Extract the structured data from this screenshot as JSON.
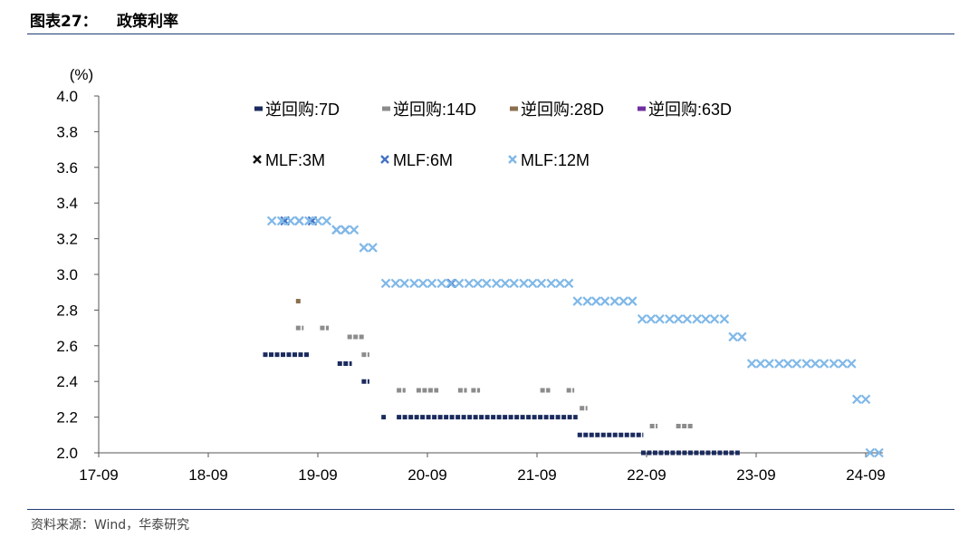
{
  "header": {
    "label": "图表27：",
    "title": "政策利率"
  },
  "source": "资料来源：Wind，华泰研究",
  "chart_data": {
    "type": "scatter",
    "ylabel": "(%)",
    "ylim": [
      2.0,
      4.0
    ],
    "yticks": [
      "4.0",
      "3.8",
      "3.6",
      "3.4",
      "3.2",
      "3.0",
      "2.8",
      "2.6",
      "2.4",
      "2.2",
      "2.0"
    ],
    "xticks": [
      "17-09",
      "18-09",
      "19-09",
      "20-09",
      "21-09",
      "22-09",
      "23-09",
      "24-09"
    ],
    "grid": false,
    "legend_position": "top",
    "series": [
      {
        "name": "逆回购:7D",
        "color": "#1b2b5e",
        "marker": "dash",
        "segments": [
          {
            "x": [
              2018.5,
              2018.93
            ],
            "y": 2.55
          },
          {
            "x": [
              2019.18,
              2019.31
            ],
            "y": 2.5
          },
          {
            "x": [
              2019.4,
              2019.47
            ],
            "y": 2.4
          },
          {
            "x": [
              2019.58,
              2019.62
            ],
            "y": 2.2
          },
          {
            "x": [
              2019.72,
              2021.37
            ],
            "y": 2.2
          },
          {
            "x": [
              2021.37,
              2021.97
            ],
            "y": 2.1
          },
          {
            "x": [
              2021.95,
              2022.85
            ],
            "y": 2.0
          }
        ]
      },
      {
        "name": "逆回购:14D",
        "color": "#8c8c8c",
        "marker": "dash",
        "segments": [
          {
            "x": [
              2018.8,
              2018.87
            ],
            "y": 2.7
          },
          {
            "x": [
              2019.02,
              2019.1
            ],
            "y": 2.7
          },
          {
            "x": [
              2019.27,
              2019.43
            ],
            "y": 2.65
          },
          {
            "x": [
              2019.4,
              2019.47
            ],
            "y": 2.55
          },
          {
            "x": [
              2019.72,
              2019.8
            ],
            "y": 2.35
          },
          {
            "x": [
              2019.9,
              2020.1
            ],
            "y": 2.35
          },
          {
            "x": [
              2020.28,
              2020.36
            ],
            "y": 2.35
          },
          {
            "x": [
              2020.4,
              2020.48
            ],
            "y": 2.35
          },
          {
            "x": [
              2021.03,
              2021.12
            ],
            "y": 2.35
          },
          {
            "x": [
              2021.27,
              2021.34
            ],
            "y": 2.35
          },
          {
            "x": [
              2021.39,
              2021.46
            ],
            "y": 2.25
          },
          {
            "x": [
              2022.03,
              2022.1
            ],
            "y": 2.15
          },
          {
            "x": [
              2022.27,
              2022.43
            ],
            "y": 2.15
          }
        ]
      },
      {
        "name": "逆回购:28D",
        "color": "#8b6f4e",
        "marker": "dash",
        "segments": [
          {
            "x": [
              2018.8,
              2018.85
            ],
            "y": 2.85
          }
        ]
      },
      {
        "name": "逆回购:63D",
        "color": "#7030a0",
        "marker": "dash",
        "segments": []
      },
      {
        "name": "MLF:3M",
        "color": "#111111",
        "marker": "x",
        "points": []
      },
      {
        "name": "MLF:6M",
        "color": "#4472c4",
        "marker": "x",
        "points": [
          [
            2018.7,
            3.3
          ],
          [
            2018.83,
            3.3
          ],
          [
            2018.95,
            3.3
          ],
          [
            2019.17,
            3.25
          ],
          [
            2019.25,
            3.25
          ],
          [
            2020.22,
            2.95
          ]
        ]
      },
      {
        "name": "MLF:12M",
        "color": "#7fb8e8",
        "marker": "x",
        "points": [
          [
            2018.58,
            3.3
          ],
          [
            2018.67,
            3.3
          ],
          [
            2018.75,
            3.3
          ],
          [
            2018.83,
            3.3
          ],
          [
            2018.92,
            3.3
          ],
          [
            2019.0,
            3.3
          ],
          [
            2019.08,
            3.3
          ],
          [
            2019.17,
            3.25
          ],
          [
            2019.25,
            3.25
          ],
          [
            2019.33,
            3.25
          ],
          [
            2019.42,
            3.15
          ],
          [
            2019.5,
            3.15
          ],
          [
            2019.62,
            2.95
          ],
          [
            2019.71,
            2.95
          ],
          [
            2019.79,
            2.95
          ],
          [
            2019.88,
            2.95
          ],
          [
            2019.96,
            2.95
          ],
          [
            2020.04,
            2.95
          ],
          [
            2020.13,
            2.95
          ],
          [
            2020.21,
            2.95
          ],
          [
            2020.29,
            2.95
          ],
          [
            2020.38,
            2.95
          ],
          [
            2020.46,
            2.95
          ],
          [
            2020.54,
            2.95
          ],
          [
            2020.63,
            2.95
          ],
          [
            2020.71,
            2.95
          ],
          [
            2020.79,
            2.95
          ],
          [
            2020.88,
            2.95
          ],
          [
            2020.96,
            2.95
          ],
          [
            2021.04,
            2.95
          ],
          [
            2021.13,
            2.95
          ],
          [
            2021.21,
            2.95
          ],
          [
            2021.29,
            2.95
          ],
          [
            2021.37,
            2.85
          ],
          [
            2021.46,
            2.85
          ],
          [
            2021.54,
            2.85
          ],
          [
            2021.62,
            2.85
          ],
          [
            2021.71,
            2.85
          ],
          [
            2021.79,
            2.85
          ],
          [
            2021.87,
            2.85
          ],
          [
            2021.96,
            2.75
          ],
          [
            2022.04,
            2.75
          ],
          [
            2022.12,
            2.75
          ],
          [
            2022.21,
            2.75
          ],
          [
            2022.29,
            2.75
          ],
          [
            2022.37,
            2.75
          ],
          [
            2022.46,
            2.75
          ],
          [
            2022.54,
            2.75
          ],
          [
            2022.62,
            2.75
          ],
          [
            2022.71,
            2.75
          ],
          [
            2022.79,
            2.65
          ],
          [
            2022.87,
            2.65
          ],
          [
            2022.96,
            2.5
          ],
          [
            2023.04,
            2.5
          ],
          [
            2023.12,
            2.5
          ],
          [
            2023.21,
            2.5
          ],
          [
            2023.29,
            2.5
          ],
          [
            2023.37,
            2.5
          ],
          [
            2023.46,
            2.5
          ],
          [
            2023.54,
            2.5
          ],
          [
            2023.62,
            2.5
          ],
          [
            2023.71,
            2.5
          ],
          [
            2023.79,
            2.5
          ],
          [
            2023.87,
            2.5
          ],
          [
            2023.92,
            2.3
          ],
          [
            2024.0,
            2.3
          ],
          [
            2024.04,
            2.0
          ],
          [
            2024.12,
            2.0
          ]
        ]
      }
    ]
  }
}
